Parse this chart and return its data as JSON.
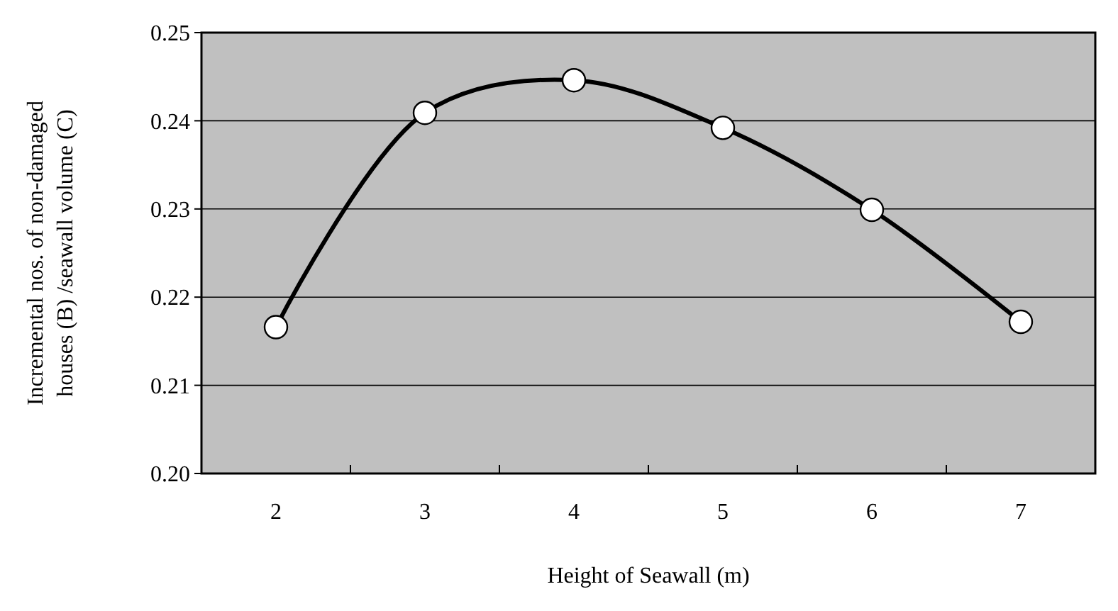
{
  "chart_data": {
    "type": "line",
    "xlabel": "Height of Seawall (m)",
    "ylabel": "Incremental nos. of non-damaged\nhouses (B) /seawall volume (C)",
    "categories": [
      "2",
      "3",
      "4",
      "5",
      "6",
      "7"
    ],
    "series": [
      {
        "color": "#000000",
        "values": [
          0.2166,
          0.2409,
          0.2446,
          0.2392,
          0.2299,
          0.2172
        ]
      }
    ],
    "ylim": [
      0.2,
      0.25
    ],
    "yticks": [
      {
        "value": 0.2,
        "label": "0.20"
      },
      {
        "value": 0.21,
        "label": "0.21"
      },
      {
        "value": 0.22,
        "label": "0.22"
      },
      {
        "value": 0.23,
        "label": "0.23"
      },
      {
        "value": 0.24,
        "label": "0.24"
      },
      {
        "value": 0.25,
        "label": "0.25"
      }
    ],
    "grid": "y",
    "marker": "circle",
    "line_style": "solid"
  }
}
